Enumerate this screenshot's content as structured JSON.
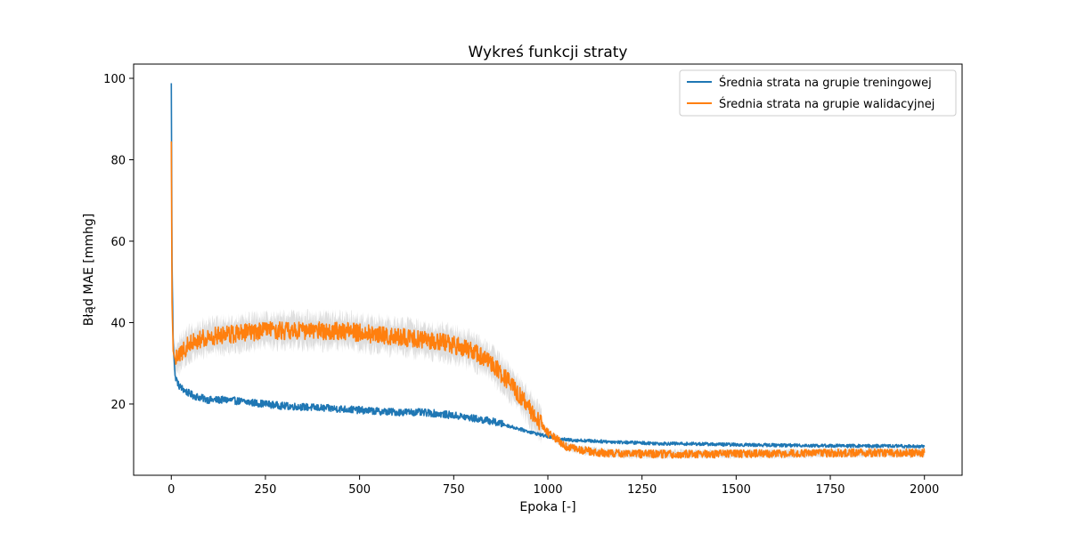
{
  "chart_data": {
    "type": "line",
    "title": "Wykreś funkcji straty",
    "xlabel": "Epoka [-]",
    "ylabel": "Błąd MAE [mmhg]",
    "xlim": [
      -100,
      2100
    ],
    "ylim": [
      2.5,
      103.5
    ],
    "xticks": [
      0,
      250,
      500,
      750,
      1000,
      1250,
      1500,
      1750,
      2000
    ],
    "yticks": [
      20,
      40,
      60,
      80,
      100
    ],
    "grid": false,
    "legend_position": "top-right",
    "series": [
      {
        "name": "Średnia strata na grupie treningowej",
        "color": "#1f77b4",
        "x": [
          0,
          2,
          5,
          10,
          20,
          40,
          60,
          100,
          150,
          200,
          250,
          300,
          350,
          400,
          450,
          500,
          550,
          600,
          650,
          700,
          750,
          800,
          850,
          900,
          950,
          1000,
          1050,
          1100,
          1150,
          1200,
          1300,
          1400,
          1500,
          1600,
          1700,
          1800,
          1900,
          2000
        ],
        "values": [
          98.8,
          55,
          35,
          27,
          24.5,
          23,
          22,
          21,
          21,
          20.5,
          20,
          19.5,
          19.3,
          19,
          18.8,
          18.5,
          18.2,
          18,
          18,
          17.7,
          17.2,
          16.5,
          15.8,
          14.5,
          13.2,
          12,
          11.2,
          11,
          10.8,
          10.6,
          10.3,
          10.2,
          10,
          9.9,
          9.8,
          9.7,
          9.7,
          9.6
        ],
        "noise": 0.9
      },
      {
        "name": "Średnia strata na grupie walidacyjnej",
        "color": "#ff7f0e",
        "x": [
          0,
          2,
          5,
          10,
          20,
          40,
          60,
          100,
          150,
          200,
          250,
          300,
          350,
          400,
          450,
          500,
          550,
          600,
          650,
          700,
          750,
          800,
          850,
          900,
          950,
          1000,
          1050,
          1100,
          1150,
          1200,
          1300,
          1400,
          1500,
          1600,
          1700,
          1800,
          1900,
          2000
        ],
        "values": [
          84.5,
          45,
          33,
          31,
          32,
          34,
          35.5,
          36.5,
          37,
          37.5,
          38,
          38,
          38,
          38,
          38,
          37.5,
          37,
          36.5,
          36,
          35.5,
          34.5,
          33,
          30,
          25,
          19,
          13,
          9.5,
          8.5,
          8,
          7.8,
          7.7,
          7.7,
          7.8,
          7.8,
          7.9,
          8,
          8,
          8
        ],
        "noise": 2.2,
        "band": 3.6,
        "band_color": "#d3d3d3"
      }
    ]
  }
}
